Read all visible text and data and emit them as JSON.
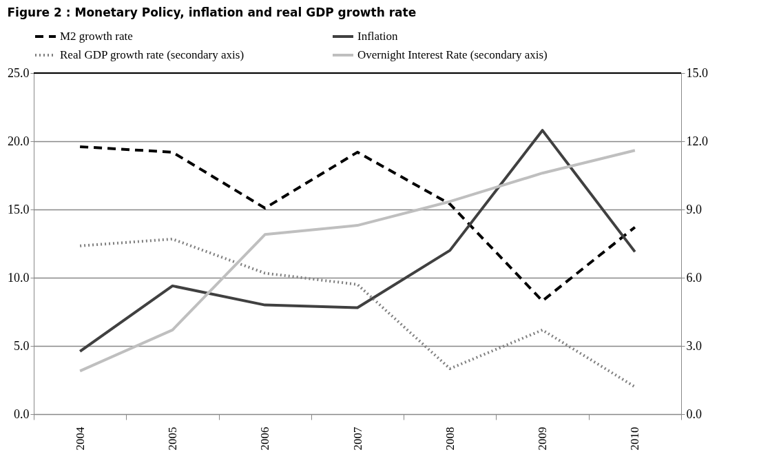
{
  "chart_data": {
    "type": "line",
    "title": "Figure 2 : Monetary Policy, inflation and real GDP growth rate",
    "categories": [
      "2004",
      "2005",
      "2006",
      "2007",
      "2008",
      "2009",
      "2010"
    ],
    "series": [
      {
        "name": "M2 growth rate",
        "color": "#000000",
        "line_style": "dashed",
        "values": [
          19.6,
          19.2,
          15.1,
          19.2,
          15.4,
          8.3,
          13.7
        ]
      },
      {
        "name": "Inflation",
        "color": "#404040",
        "line_style": "solid",
        "values": [
          4.6,
          9.4,
          8.0,
          7.8,
          12.0,
          20.8,
          11.9
        ]
      },
      {
        "name": "Real GDP growth rate (secondary axis)",
        "color": "#808080",
        "line_style": "dotted",
        "axis": "y2",
        "values": [
          7.4,
          7.7,
          6.2,
          5.7,
          2.0,
          3.7,
          1.2
        ]
      },
      {
        "name": "Overnight Interest Rate (secondary axis)",
        "color": "#bfbfbf",
        "line_style": "solid",
        "axis": "y2",
        "values": [
          1.9,
          3.7,
          7.9,
          8.3,
          9.35,
          10.6,
          11.6
        ]
      }
    ],
    "ylim": [
      0,
      25
    ],
    "yticks": [
      {
        "value": 0,
        "label": "0.0"
      },
      {
        "value": 5,
        "label": "5.0"
      },
      {
        "value": 10,
        "label": "10.0"
      },
      {
        "value": 15,
        "label": "15.0"
      },
      {
        "value": 20,
        "label": "20.0"
      },
      {
        "value": 25,
        "label": "25.0"
      }
    ],
    "y2lim": [
      0,
      15
    ],
    "y2ticks": [
      {
        "value": 0,
        "label": "0.0"
      },
      {
        "value": 3,
        "label": "3.0"
      },
      {
        "value": 6,
        "label": "6.0"
      },
      {
        "value": 9,
        "label": "9.0"
      },
      {
        "value": 12,
        "label": "12.0"
      },
      {
        "value": 15,
        "label": "15.0"
      }
    ],
    "grid": "y",
    "legend": "top",
    "marker": "none"
  }
}
